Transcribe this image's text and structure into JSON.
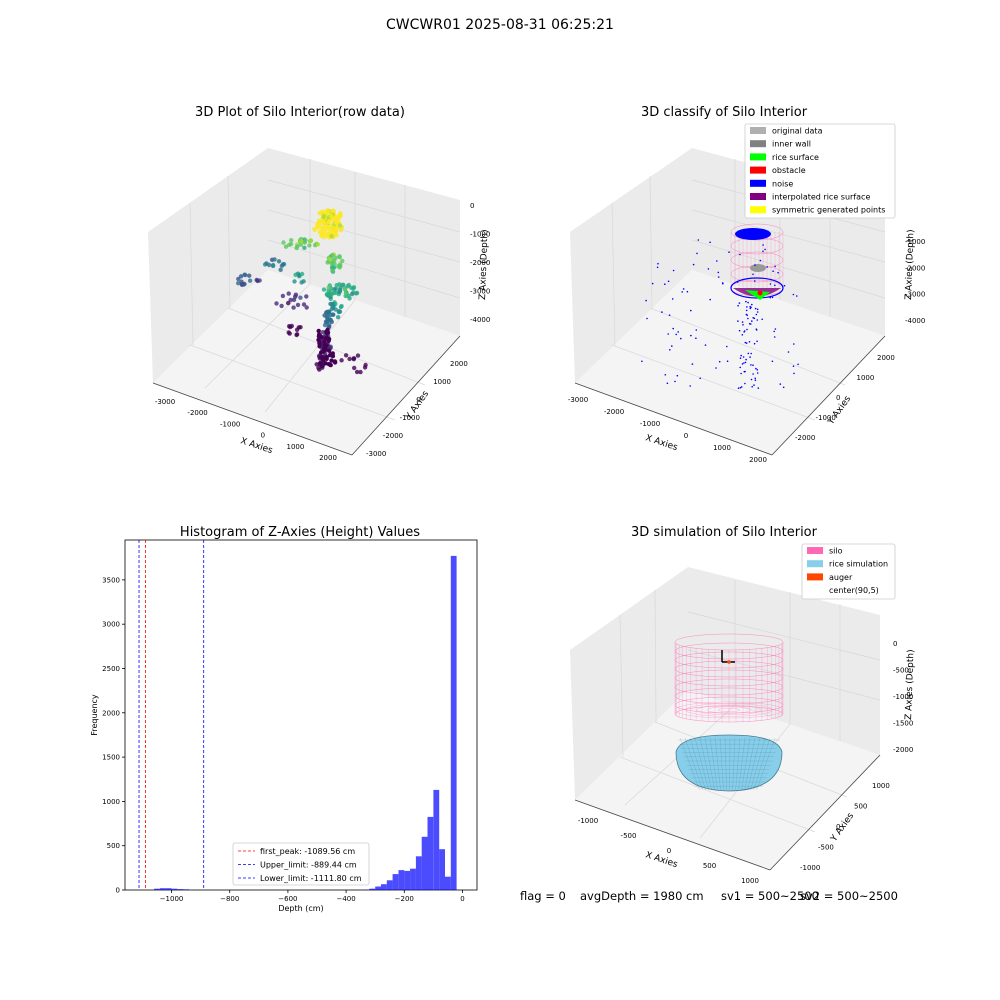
{
  "suptitle": "CWCWR01 2025-08-31 06:25:21",
  "status": {
    "flag": "flag = 0",
    "avg_depth": "avgDepth = 1980 cm",
    "sv1": "sv1 = 500~2500",
    "sv2": "sv2 = 500~2500"
  },
  "colors": {
    "silo": "#ff69b4",
    "rice_simulation": "#87ceeb",
    "auger": "#ff4500",
    "histogram": "#0000ff",
    "pane": "#f2f2f2"
  },
  "chart_data": [
    {
      "type": "scatter3d",
      "title": "3D Plot of Silo Interior(row data)",
      "xlabel": "X Axies",
      "ylabel": "Y Axies",
      "zlabel": "Z Axies (Depth)",
      "xticks": [
        "-3000",
        "-2000",
        "-1000",
        "0",
        "1000",
        "2000"
      ],
      "yticks": [
        "-3000",
        "-2000",
        "-1000",
        "0",
        "1000",
        "2000"
      ],
      "zticks": [
        "-4000",
        "-3000",
        "-2000",
        "-1000",
        "0"
      ],
      "colormap": "viridis by depth",
      "grid": true
    },
    {
      "type": "scatter3d",
      "title": "3D classify of Silo Interior",
      "xlabel": "X Axies",
      "ylabel": "Y Axies",
      "zlabel": "Z Axies (Depth)",
      "xticks": [
        "-3000",
        "-2000",
        "-1000",
        "0",
        "1000",
        "2000"
      ],
      "yticks": [
        "-2000",
        "-1000",
        "0",
        "1000",
        "2000"
      ],
      "zticks": [
        "-4000",
        "-3000",
        "-2000",
        "-1000"
      ],
      "legend_position": "top-right",
      "legend": [
        {
          "label": "original data",
          "color": "#b0b0b0"
        },
        {
          "label": "inner wall",
          "color": "#808080"
        },
        {
          "label": "rice surface",
          "color": "#00ff00"
        },
        {
          "label": "obstacle",
          "color": "#ff0000"
        },
        {
          "label": "noise",
          "color": "#0000ff"
        },
        {
          "label": "interpolated rice surface",
          "color": "#800080"
        },
        {
          "label": "symmetric generated points",
          "color": "#ffff00"
        }
      ],
      "grid": true
    },
    {
      "type": "histogram",
      "title": "Histogram of Z-Axies (Height) Values",
      "xlabel": "Depth (cm)",
      "ylabel": "Frequency",
      "xlim": [
        -1160,
        50
      ],
      "ylim": [
        0,
        3950
      ],
      "xticks": [
        -1000,
        -800,
        -600,
        -400,
        -200,
        0
      ],
      "yticks": [
        0,
        500,
        1000,
        1500,
        2000,
        2500,
        3000,
        3500
      ],
      "bin_width": 20,
      "bins": [
        {
          "x": -1050,
          "count": 15
        },
        {
          "x": -1030,
          "count": 20
        },
        {
          "x": -1010,
          "count": 20
        },
        {
          "x": -990,
          "count": 15
        },
        {
          "x": -970,
          "count": 10
        },
        {
          "x": -950,
          "count": 8
        },
        {
          "x": -330,
          "count": 5
        },
        {
          "x": -310,
          "count": 15
        },
        {
          "x": -290,
          "count": 40
        },
        {
          "x": -270,
          "count": 65
        },
        {
          "x": -250,
          "count": 110
        },
        {
          "x": -230,
          "count": 180
        },
        {
          "x": -210,
          "count": 225
        },
        {
          "x": -190,
          "count": 215
        },
        {
          "x": -170,
          "count": 240
        },
        {
          "x": -150,
          "count": 380
        },
        {
          "x": -130,
          "count": 600
        },
        {
          "x": -110,
          "count": 825
        },
        {
          "x": -90,
          "count": 1130
        },
        {
          "x": -70,
          "count": 460
        },
        {
          "x": -50,
          "count": 150
        },
        {
          "x": -30,
          "count": 3770
        }
      ],
      "lines": [
        {
          "label": "first_peak: -1089.56 cm",
          "x": -1089.56,
          "color": "#ff0000"
        },
        {
          "label": "Upper_limit: -889.44 cm",
          "x": -889.44,
          "color": "#0000ff"
        },
        {
          "label": "Lower_limit: -1111.80 cm",
          "x": -1111.8,
          "color": "#0000ff"
        }
      ],
      "legend_position": "lower-center"
    },
    {
      "type": "surface3d",
      "title": "3D simulation of Silo Interior",
      "xlabel": "X Axies",
      "ylabel": "Y Axies",
      "zlabel": "Z Axies (Depth)",
      "xticks": [
        "-1000",
        "-500",
        "0",
        "500",
        "1000"
      ],
      "yticks": [
        "-1000",
        "-500",
        "0",
        "500",
        "1000"
      ],
      "zticks": [
        "-2000",
        "-1500",
        "-1000",
        "-500",
        "0"
      ],
      "legend_position": "top-right",
      "legend": [
        {
          "label": "silo",
          "color": "#ff69b4"
        },
        {
          "label": "rice simulation",
          "color": "#87ceeb"
        },
        {
          "label": "auger",
          "color": "#ff4500"
        },
        {
          "label": "center(90,5)",
          "color": ""
        }
      ],
      "grid": true
    }
  ]
}
